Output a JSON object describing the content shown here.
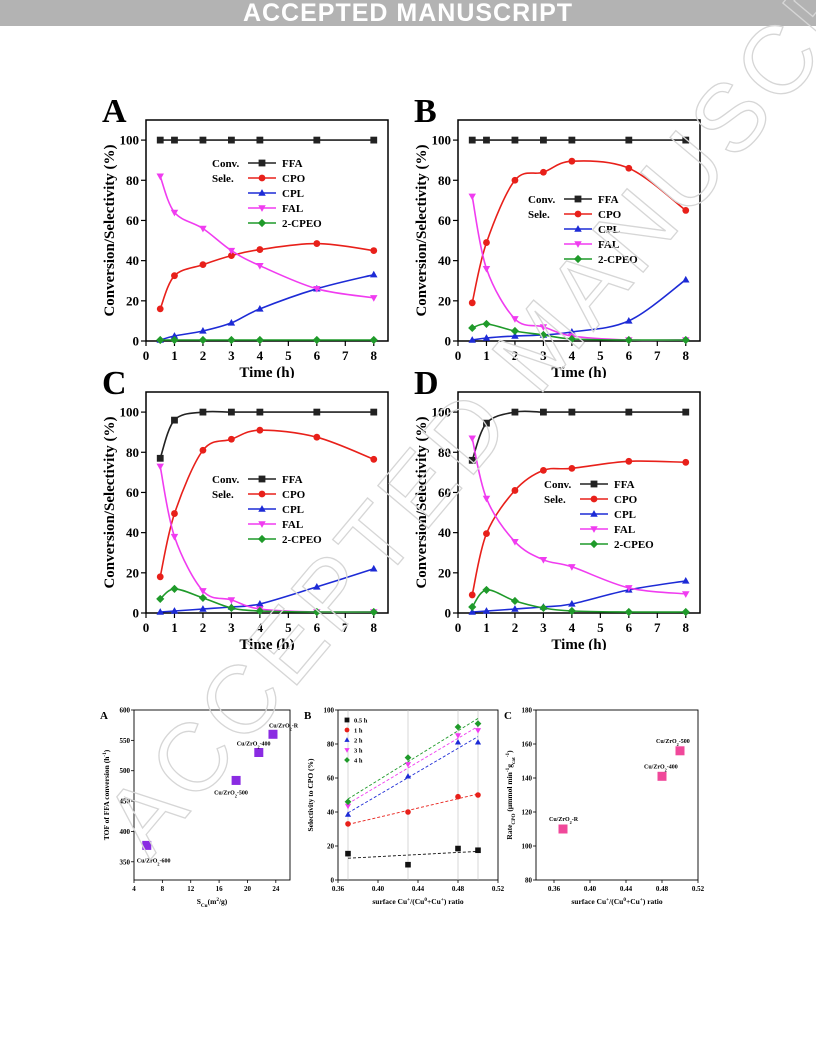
{
  "banner": "ACCEPTED MANUSCRIPT",
  "watermark": "ACCEPTED MANUSCRIPT",
  "colors": {
    "FFA": "#222222",
    "CPO": "#e8201a",
    "CPL": "#1d2bd6",
    "FAL": "#f03cf0",
    "CPEO": "#1f9a2a"
  },
  "chart_data": [
    {
      "letter": "A",
      "type": "line",
      "xlabel": "Time (h)",
      "ylabel": "Conversion/Selectivity (%)",
      "xlim": [
        0,
        8.5
      ],
      "ylim": [
        0,
        110
      ],
      "xticks": [
        "0",
        "1",
        "2",
        "3",
        "4",
        "5",
        "6",
        "7",
        "8"
      ],
      "yticks": [
        "0",
        "20",
        "40",
        "60",
        "80",
        "100"
      ],
      "legend": {
        "group1": "Conv.",
        "group2": "Sele."
      },
      "series": [
        {
          "name": "FFA",
          "marker": "square",
          "x": [
            0.5,
            1,
            2,
            3,
            4,
            6,
            8
          ],
          "values": [
            100,
            100,
            100,
            100,
            100,
            100,
            100
          ]
        },
        {
          "name": "CPO",
          "marker": "circle",
          "x": [
            0.5,
            1,
            2,
            3,
            4,
            6,
            8
          ],
          "values": [
            16,
            32.5,
            38,
            42.5,
            45.5,
            48.5,
            45
          ]
        },
        {
          "name": "CPL",
          "marker": "triangle-up",
          "x": [
            0.5,
            1,
            2,
            3,
            4,
            6,
            8
          ],
          "values": [
            0.5,
            2.5,
            5,
            9,
            16,
            26,
            33
          ]
        },
        {
          "name": "FAL",
          "marker": "triangle-down",
          "x": [
            0.5,
            1,
            2,
            3,
            4,
            6,
            8
          ],
          "values": [
            82,
            64,
            56,
            45,
            37.5,
            26,
            21.5
          ]
        },
        {
          "name": "2-CPEO",
          "marker": "diamond",
          "x": [
            0.5,
            1,
            2,
            3,
            4,
            6,
            8
          ],
          "values": [
            0.5,
            0.5,
            0.5,
            0.5,
            0.5,
            0.5,
            0.5
          ]
        }
      ]
    },
    {
      "letter": "B",
      "type": "line",
      "xlabel": "Time (h)",
      "ylabel": "Conversion/Selectivity (%)",
      "xlim": [
        0,
        8.5
      ],
      "ylim": [
        0,
        110
      ],
      "xticks": [
        "0",
        "1",
        "2",
        "3",
        "4",
        "5",
        "6",
        "7",
        "8"
      ],
      "yticks": [
        "0",
        "20",
        "40",
        "60",
        "80",
        "100"
      ],
      "legend": {
        "group1": "Conv.",
        "group2": "Sele."
      },
      "series": [
        {
          "name": "FFA",
          "marker": "square",
          "x": [
            0.5,
            1,
            2,
            3,
            4,
            6,
            8
          ],
          "values": [
            100,
            100,
            100,
            100,
            100,
            100,
            100
          ]
        },
        {
          "name": "CPO",
          "marker": "circle",
          "x": [
            0.5,
            1,
            2,
            3,
            4,
            6,
            8
          ],
          "values": [
            19,
            49,
            80,
            84,
            89.5,
            86,
            65
          ]
        },
        {
          "name": "CPL",
          "marker": "triangle-up",
          "x": [
            0.5,
            1,
            2,
            3,
            4,
            6,
            8
          ],
          "values": [
            0.5,
            1.5,
            2.5,
            3,
            4.5,
            10,
            30.5
          ]
        },
        {
          "name": "FAL",
          "marker": "triangle-down",
          "x": [
            0.5,
            1,
            2,
            3,
            4,
            6,
            8
          ],
          "values": [
            72,
            36,
            11,
            7,
            2.5,
            0.5,
            0.5
          ]
        },
        {
          "name": "2-CPEO",
          "marker": "diamond",
          "x": [
            0.5,
            1,
            2,
            3,
            4,
            6,
            8
          ],
          "values": [
            6.5,
            8.5,
            5,
            3,
            1,
            0.5,
            0.5
          ]
        }
      ]
    },
    {
      "letter": "C",
      "type": "line",
      "xlabel": "Time (h)",
      "ylabel": "Conversion/Selectivity (%)",
      "xlim": [
        0,
        8.5
      ],
      "ylim": [
        0,
        110
      ],
      "xticks": [
        "0",
        "1",
        "2",
        "3",
        "4",
        "5",
        "6",
        "7",
        "8"
      ],
      "yticks": [
        "0",
        "20",
        "40",
        "60",
        "80",
        "100"
      ],
      "legend": {
        "group1": "Conv.",
        "group2": "Sele."
      },
      "series": [
        {
          "name": "FFA",
          "marker": "square",
          "x": [
            0.5,
            1,
            2,
            3,
            4,
            6,
            8
          ],
          "values": [
            77,
            96,
            100,
            100,
            100,
            100,
            100
          ]
        },
        {
          "name": "CPO",
          "marker": "circle",
          "x": [
            0.5,
            1,
            2,
            3,
            4,
            6,
            8
          ],
          "values": [
            18,
            49.5,
            81,
            86.5,
            91,
            87.5,
            76.5
          ]
        },
        {
          "name": "CPL",
          "marker": "triangle-up",
          "x": [
            0.5,
            1,
            2,
            3,
            4,
            6,
            8
          ],
          "values": [
            0.5,
            1,
            2,
            3,
            4.5,
            13,
            22
          ]
        },
        {
          "name": "FAL",
          "marker": "triangle-down",
          "x": [
            0.5,
            1,
            2,
            3,
            4,
            6,
            8
          ],
          "values": [
            73,
            38,
            11,
            6.5,
            2,
            0.5,
            0.5
          ]
        },
        {
          "name": "2-CPEO",
          "marker": "diamond",
          "x": [
            0.5,
            1,
            2,
            3,
            4,
            6,
            8
          ],
          "values": [
            7,
            12,
            7.5,
            2.5,
            1,
            0.5,
            0.5
          ]
        }
      ]
    },
    {
      "letter": "D",
      "type": "line",
      "xlabel": "Time (h)",
      "ylabel": "Conversion/Selectivity (%)",
      "xlim": [
        0,
        8.5
      ],
      "ylim": [
        0,
        110
      ],
      "xticks": [
        "0",
        "1",
        "2",
        "3",
        "4",
        "5",
        "6",
        "7",
        "8"
      ],
      "yticks": [
        "0",
        "20",
        "40",
        "60",
        "80",
        "100"
      ],
      "legend": {
        "group1": "Conv.",
        "group2": "Sele."
      },
      "series": [
        {
          "name": "FFA",
          "marker": "square",
          "x": [
            0.5,
            1,
            2,
            3,
            4,
            6,
            8
          ],
          "values": [
            76,
            94.5,
            100,
            100,
            100,
            100,
            100
          ]
        },
        {
          "name": "CPO",
          "marker": "circle",
          "x": [
            0.5,
            1,
            2,
            3,
            4,
            6,
            8
          ],
          "values": [
            9,
            39.5,
            61,
            71,
            72,
            75.5,
            75
          ]
        },
        {
          "name": "CPL",
          "marker": "triangle-up",
          "x": [
            0.5,
            1,
            2,
            3,
            4,
            6,
            8
          ],
          "values": [
            0.5,
            1,
            2,
            3,
            4.5,
            11.5,
            16
          ]
        },
        {
          "name": "FAL",
          "marker": "triangle-down",
          "x": [
            0.5,
            1,
            2,
            3,
            4,
            6,
            8
          ],
          "values": [
            87,
            57,
            35.5,
            26.5,
            23,
            12.5,
            9.5
          ]
        },
        {
          "name": "2-CPEO",
          "marker": "diamond",
          "x": [
            0.5,
            1,
            2,
            3,
            4,
            6,
            8
          ],
          "values": [
            3,
            11.5,
            6,
            2.5,
            1,
            0.5,
            0.5
          ]
        }
      ]
    },
    {
      "letter": "A",
      "type": "scatter",
      "xlabel": "S",
      "xlabel_sub": "Cu",
      "xlabel_rest": "(m",
      "xlabel_sup": "2",
      "xlabel_end": "/g)",
      "ylabel": "TOF of FFA conversion (h",
      "ylabel_sup": "-1",
      "ylabel_end": ")",
      "xlim": [
        4,
        26
      ],
      "ylim": [
        320,
        600
      ],
      "xticks": [
        "4",
        "8",
        "12",
        "16",
        "20",
        "24"
      ],
      "yticks": [
        "350",
        "400",
        "450",
        "500",
        "550",
        "600"
      ],
      "points": [
        {
          "label": "Cu/ZrO",
          "label_sub": "2",
          "label_end": "-600",
          "x": 5.8,
          "y": 377
        },
        {
          "label": "Cu/ZrO",
          "label_sub": "2",
          "label_end": "-500",
          "x": 18.4,
          "y": 484
        },
        {
          "label": "Cu/ZrO",
          "label_sub": "2",
          "label_end": "-400",
          "x": 21.6,
          "y": 530
        },
        {
          "label": "Cu/ZrO",
          "label_sub": "2",
          "label_end": "-R",
          "x": 23.6,
          "y": 560
        }
      ]
    },
    {
      "letter": "B",
      "type": "scatter",
      "xlabel": "surface Cu",
      "xlabel_sup": "+",
      "xlabel_rest": "/(Cu",
      "xlabel_sup2": "0",
      "xlabel_mid": "+Cu",
      "xlabel_sup3": "+",
      "xlabel_end": ") ratio",
      "ylabel": "Selectivity to CPO (%)",
      "xlim": [
        0.36,
        0.52
      ],
      "ylim": [
        0,
        100
      ],
      "xticks": [
        "0.36",
        "0.40",
        "0.44",
        "0.48",
        "0.52"
      ],
      "yticks": [
        "0",
        "20",
        "40",
        "60",
        "80",
        "100"
      ],
      "x": [
        0.37,
        0.43,
        0.48,
        0.5
      ],
      "series": [
        {
          "name": "0.5 h",
          "color": "#111111",
          "marker": "square",
          "values": [
            15.5,
            9,
            18.5,
            17.5
          ]
        },
        {
          "name": "1 h",
          "color": "#e8201a",
          "marker": "circle",
          "values": [
            33,
            40,
            49,
            50
          ]
        },
        {
          "name": "2 h",
          "color": "#1d2bd6",
          "marker": "triangle-up",
          "values": [
            38.5,
            61,
            81,
            81
          ]
        },
        {
          "name": "3 h",
          "color": "#f03cf0",
          "marker": "triangle-down",
          "values": [
            43.5,
            68,
            85,
            88
          ]
        },
        {
          "name": "4 h",
          "color": "#1f9a2a",
          "marker": "diamond",
          "values": [
            46,
            72,
            90,
            92
          ]
        }
      ]
    },
    {
      "letter": "C",
      "type": "scatter",
      "xlabel": "surface Cu",
      "xlabel_sup": "+",
      "xlabel_rest": "/(Cu",
      "xlabel_sup2": "0",
      "xlabel_mid": "+Cu",
      "xlabel_sup3": "+",
      "xlabel_end": ") ratio",
      "ylabel": "Rate",
      "ylabel_sub": "CPO",
      "ylabel_rest": "(μmmol min",
      "ylabel_sup": "-1",
      "ylabel_mid": "g",
      "ylabel_sub2": "cat",
      "ylabel_sup2": "-1",
      "ylabel_end": ")",
      "xlim": [
        0.34,
        0.52
      ],
      "ylim": [
        80,
        180
      ],
      "xticks": [
        "0.36",
        "0.40",
        "0.44",
        "0.48",
        "0.52"
      ],
      "yticks": [
        "80",
        "100",
        "120",
        "140",
        "160",
        "180"
      ],
      "points": [
        {
          "label": "Cu/ZrO",
          "label_sub": "2",
          "label_end": "-R",
          "x": 0.37,
          "y": 110
        },
        {
          "label": "Cu/ZrO",
          "label_sub": "2",
          "label_end": "-400",
          "x": 0.48,
          "y": 141
        },
        {
          "label": "Cu/ZrO",
          "label_sub": "2",
          "label_end": "-500",
          "x": 0.5,
          "y": 156
        }
      ]
    }
  ]
}
